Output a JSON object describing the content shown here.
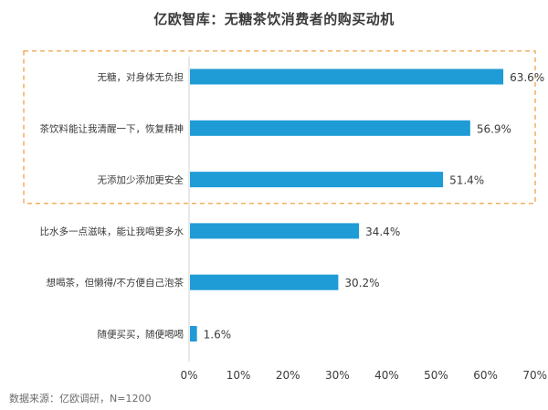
{
  "title": "亿欧智库：无糖茶饮消费者的购买动机",
  "source_note": "数据来源：亿欧调研，N=1200",
  "chart_data": {
    "type": "bar",
    "orientation": "horizontal",
    "title": "亿欧智库：无糖茶饮消费者的购买动机",
    "categories": [
      "无糖，对身体无负担",
      "茶饮料能让我清醒一下，恢复精神",
      "无添加少添加更安全",
      "比水多一点滋味，能让我喝更多水",
      "想喝茶，但懒得/不方便自己泡茶",
      "随便买买，随便喝喝"
    ],
    "values": [
      63.6,
      56.9,
      51.4,
      34.4,
      30.2,
      1.6
    ],
    "value_labels": [
      "63.6%",
      "56.9%",
      "51.4%",
      "34.4%",
      "30.2%",
      "1.6%"
    ],
    "xlim": [
      0,
      70
    ],
    "x_ticks": [
      0,
      10,
      20,
      30,
      40,
      50,
      60,
      70
    ],
    "x_tick_labels": [
      "0%",
      "10%",
      "20%",
      "30%",
      "40%",
      "50%",
      "60%",
      "70%"
    ],
    "highlighted_categories": 3,
    "grid": false,
    "bar_color": "#1f9bd6",
    "highlight_border_color": "#f0a046"
  }
}
